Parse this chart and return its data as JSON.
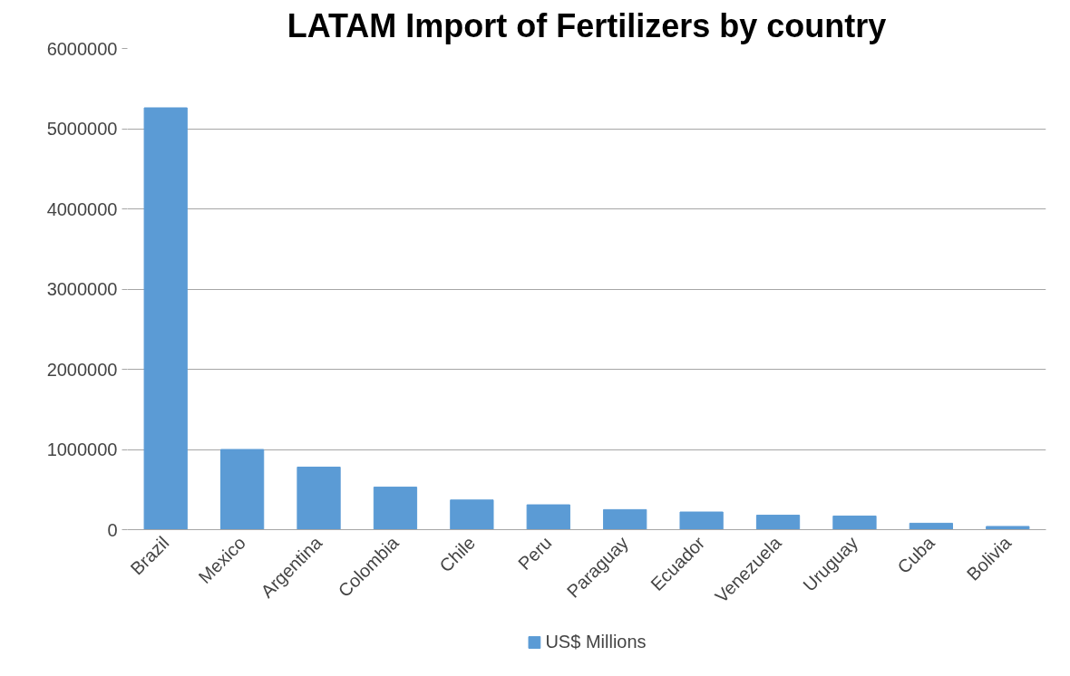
{
  "chart_data": {
    "type": "bar",
    "title": "LATAM Import of Fertilizers by country",
    "categories": [
      "Brazil",
      "Mexico",
      "Argentina",
      "Colombia",
      "Chile",
      "Peru",
      "Paraguay",
      "Ecuador",
      "Venezuela",
      "Uruguay",
      "Cuba",
      "Bolivia"
    ],
    "series": [
      {
        "name": "US$ Millions",
        "color": "#5b9bd5",
        "values": [
          5260000,
          1000000,
          780000,
          530000,
          370000,
          310000,
          250000,
          220000,
          180000,
          170000,
          80000,
          40000
        ]
      }
    ],
    "ylim": [
      0,
      6000000
    ],
    "yticks": [
      0,
      1000000,
      2000000,
      3000000,
      4000000,
      5000000,
      6000000
    ],
    "grid": "y",
    "legend": "bottom"
  }
}
